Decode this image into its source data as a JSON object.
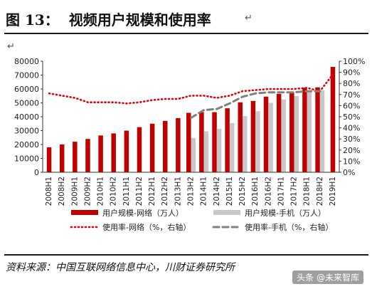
{
  "header": {
    "label": "图 13：",
    "title": "视频用户规模和使用率",
    "return_mark": "↵"
  },
  "source": "资料来源：中国互联网络信息中心，川财证券研究所",
  "watermark": "头条 @未来智库",
  "colors": {
    "bar_network": "#c00000",
    "bar_mobile": "#c8c8c8",
    "line_network": "#e00000",
    "line_mobile": "#808080"
  },
  "chart_data": {
    "type": "bar",
    "categories": [
      "2008H1",
      "2008H2",
      "2009H1",
      "2009H2",
      "2010H1",
      "2010H2",
      "2011H1",
      "2011H2",
      "2012H1",
      "2012H2",
      "2013H1",
      "2013H2",
      "2014H1",
      "2014H2",
      "2015H1",
      "2015H2",
      "2016H1",
      "2016H2",
      "2017H1",
      "2017H2",
      "2018H1",
      "2018H2",
      "2019H1"
    ],
    "y_left": {
      "min": 0,
      "max": 80000,
      "step": 10000,
      "ticks": [
        "0",
        "10000",
        "20000",
        "30000",
        "40000",
        "50000",
        "60000",
        "70000",
        "80000"
      ]
    },
    "y_right": {
      "min": 0,
      "max": 100,
      "step": 10,
      "ticks": [
        "0%",
        "10%",
        "20%",
        "30%",
        "40%",
        "50%",
        "60%",
        "70%",
        "80%",
        "90%",
        "100%"
      ]
    },
    "series": [
      {
        "name": "用户规模-网络（万人）",
        "kind": "bar",
        "axis": "left",
        "values": [
          18000,
          20000,
          22000,
          24000,
          26500,
          28000,
          30000,
          32500,
          35000,
          37000,
          39000,
          42800,
          43300,
          43300,
          46100,
          50400,
          51400,
          54500,
          56500,
          57900,
          60900,
          61200,
          75900
        ]
      },
      {
        "name": "用户规模-手机（万人）",
        "kind": "bar",
        "axis": "left",
        "values": [
          null,
          null,
          null,
          null,
          null,
          null,
          null,
          null,
          null,
          null,
          null,
          24700,
          29500,
          31300,
          35400,
          40500,
          44000,
          50000,
          52500,
          54900,
          57800,
          59000,
          null
        ]
      },
      {
        "name": "使用率-网络（%，右轴）",
        "kind": "line",
        "axis": "right",
        "style": "dotted",
        "values": [
          71,
          69,
          67,
          63,
          63,
          63,
          62,
          63,
          65,
          66,
          66,
          69,
          69,
          67,
          69,
          73,
          74,
          75,
          75,
          75,
          76,
          73,
          88
        ]
      },
      {
        "name": "使用率-手机（%，右轴）",
        "kind": "line",
        "axis": "right",
        "style": "dashed",
        "values": [
          null,
          null,
          null,
          null,
          null,
          null,
          null,
          null,
          null,
          null,
          null,
          49,
          56,
          57,
          62,
          68,
          71,
          72,
          72,
          72,
          73,
          73,
          null
        ]
      }
    ],
    "legend_position": "bottom"
  }
}
